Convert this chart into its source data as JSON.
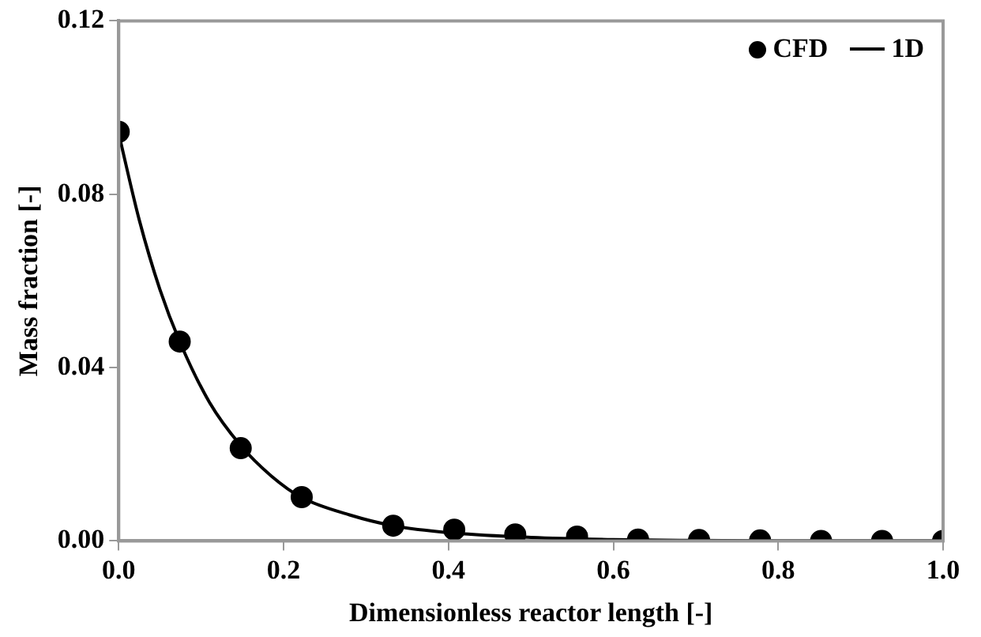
{
  "chart_data": {
    "type": "line",
    "xlabel": "Dimensionless reactor length [-]",
    "ylabel": "Mass fraction [-]",
    "xlim": [
      0,
      1
    ],
    "xticks": [
      {
        "value": 0,
        "label": "0.0"
      },
      0.2,
      0.4,
      0.6,
      0.8,
      {
        "value": 1,
        "label": "1.0"
      }
    ],
    "ylim": [
      0,
      0.12
    ],
    "yticks": [
      {
        "value": 0,
        "label": "0.00"
      },
      0.04,
      0.08,
      0.12
    ],
    "grid": false,
    "legend": "top right",
    "series": [
      {
        "name": "CFD",
        "type": "scatter",
        "marker": "circle",
        "color": "#000000",
        "x": [
          0,
          0.074,
          0.148,
          0.222,
          0.333,
          0.407,
          0.481,
          0.556,
          0.63,
          0.704,
          0.778,
          0.852,
          0.926,
          1.0
        ],
        "values": [
          0.0944,
          0.046,
          0.0214,
          0.0101,
          0.0035,
          0.0026,
          0.0015,
          0.001,
          0.0003,
          0.0002,
          0.0001,
          0,
          0,
          0
        ]
      },
      {
        "name": "1D",
        "type": "line",
        "marker": "none",
        "line_style": "solid",
        "color": "#000000",
        "x": [
          0,
          0.025,
          0.05,
          0.074,
          0.11,
          0.148,
          0.185,
          0.222,
          0.28,
          0.333,
          0.407,
          0.5,
          0.6,
          0.7,
          0.8,
          1.0
        ],
        "values": [
          0.094,
          0.074,
          0.058,
          0.046,
          0.032,
          0.022,
          0.015,
          0.01,
          0.006,
          0.0035,
          0.0018,
          0.0008,
          0.0003,
          0.0001,
          0,
          0
        ]
      }
    ]
  }
}
